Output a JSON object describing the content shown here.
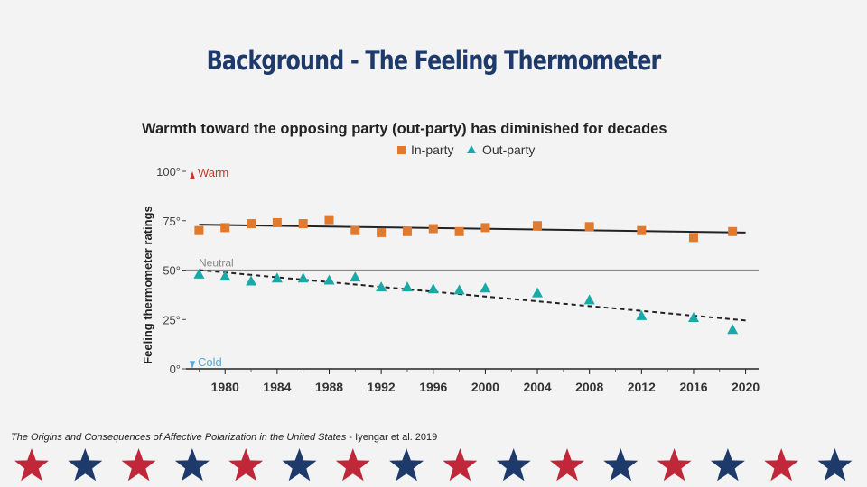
{
  "slide": {
    "title": "Background - The Feeling Thermometer",
    "citation_title": "The Origins and Consequences of Affective Polarization in the United States",
    "citation_separator": " -  ",
    "citation_author": "Iyengar et al. 2019"
  },
  "colors": {
    "title": "#1d3a6b",
    "in_party": "#e07a2e",
    "out_party": "#1aa9a9",
    "star_red": "#c0283a",
    "star_blue": "#1d3a6b",
    "warm_label": "#c0392b",
    "cold_label": "#5aa6d6"
  },
  "chart_data": {
    "type": "scatter",
    "title": "Warmth toward the opposing party (out-party) has diminished for decades",
    "ylabel": "Feeling thermometer ratings",
    "xlabel": "",
    "xlim": [
      1977,
      2021
    ],
    "ylim": [
      0,
      100
    ],
    "x_ticks": [
      1980,
      1984,
      1988,
      1992,
      1996,
      2000,
      2004,
      2008,
      2012,
      2016,
      2020
    ],
    "y_ticks": [
      {
        "value": 0,
        "label": "0°"
      },
      {
        "value": 25,
        "label": "25°"
      },
      {
        "value": 50,
        "label": "50°"
      },
      {
        "value": 75,
        "label": "75°"
      },
      {
        "value": 100,
        "label": "100°"
      }
    ],
    "legend_position": "top",
    "annotations": {
      "warm": "Warm",
      "cold": "Cold",
      "neutral": "Neutral"
    },
    "neutral_value": 50,
    "series": [
      {
        "name": "In-party",
        "marker": "square",
        "x": [
          1978,
          1980,
          1982,
          1984,
          1986,
          1988,
          1990,
          1992,
          1994,
          1996,
          1998,
          2000,
          2004,
          2008,
          2012,
          2016,
          2019
        ],
        "y": [
          70,
          71.5,
          73.5,
          74,
          73.5,
          75.5,
          70,
          69,
          69.5,
          71,
          69.5,
          71.5,
          72.5,
          72,
          70,
          66.5,
          69.5
        ],
        "trend": {
          "style": "solid",
          "start": [
            1978,
            73
          ],
          "end": [
            2020,
            69
          ]
        }
      },
      {
        "name": "Out-party",
        "marker": "triangle",
        "x": [
          1978,
          1980,
          1982,
          1984,
          1986,
          1988,
          1990,
          1992,
          1994,
          1996,
          1998,
          2000,
          2004,
          2008,
          2012,
          2016,
          2019
        ],
        "y": [
          48,
          47,
          44.5,
          46,
          46,
          45,
          46.5,
          41.5,
          41.5,
          40.5,
          40,
          41,
          38.5,
          35,
          27,
          26,
          20
        ],
        "trend": {
          "style": "dashed",
          "start": [
            1978,
            50
          ],
          "end": [
            2020,
            24.5
          ]
        }
      }
    ]
  }
}
